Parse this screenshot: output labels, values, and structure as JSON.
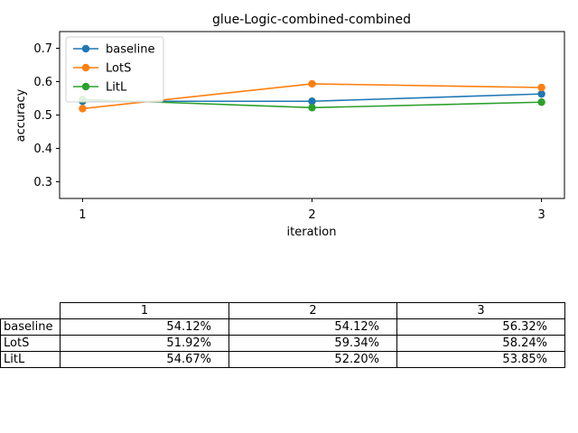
{
  "chart_data": {
    "type": "line",
    "title": "glue-Logic-combined-combined",
    "xlabel": "iteration",
    "ylabel": "accuracy",
    "x": [
      1,
      2,
      3
    ],
    "xticks": [
      "1",
      "2",
      "3"
    ],
    "yticks": [
      "0.3",
      "0.4",
      "0.5",
      "0.6",
      "0.7"
    ],
    "ylim": [
      0.25,
      0.75
    ],
    "grid": false,
    "legend_position": "top-left",
    "series": [
      {
        "name": "baseline",
        "color": "#1f77b4",
        "values": [
          0.5412,
          0.5412,
          0.5632
        ]
      },
      {
        "name": "LotS",
        "color": "#ff7f0e",
        "values": [
          0.5192,
          0.5934,
          0.5824
        ]
      },
      {
        "name": "LitL",
        "color": "#2ca02c",
        "values": [
          0.5467,
          0.522,
          0.5385
        ]
      }
    ]
  },
  "table": {
    "columns": [
      "1",
      "2",
      "3"
    ],
    "rows": [
      {
        "label": "baseline",
        "cells": [
          "54.12%",
          "54.12%",
          "56.32%"
        ]
      },
      {
        "label": "LotS",
        "cells": [
          "51.92%",
          "59.34%",
          "58.24%"
        ]
      },
      {
        "label": "LitL",
        "cells": [
          "54.67%",
          "52.20%",
          "53.85%"
        ]
      }
    ]
  }
}
